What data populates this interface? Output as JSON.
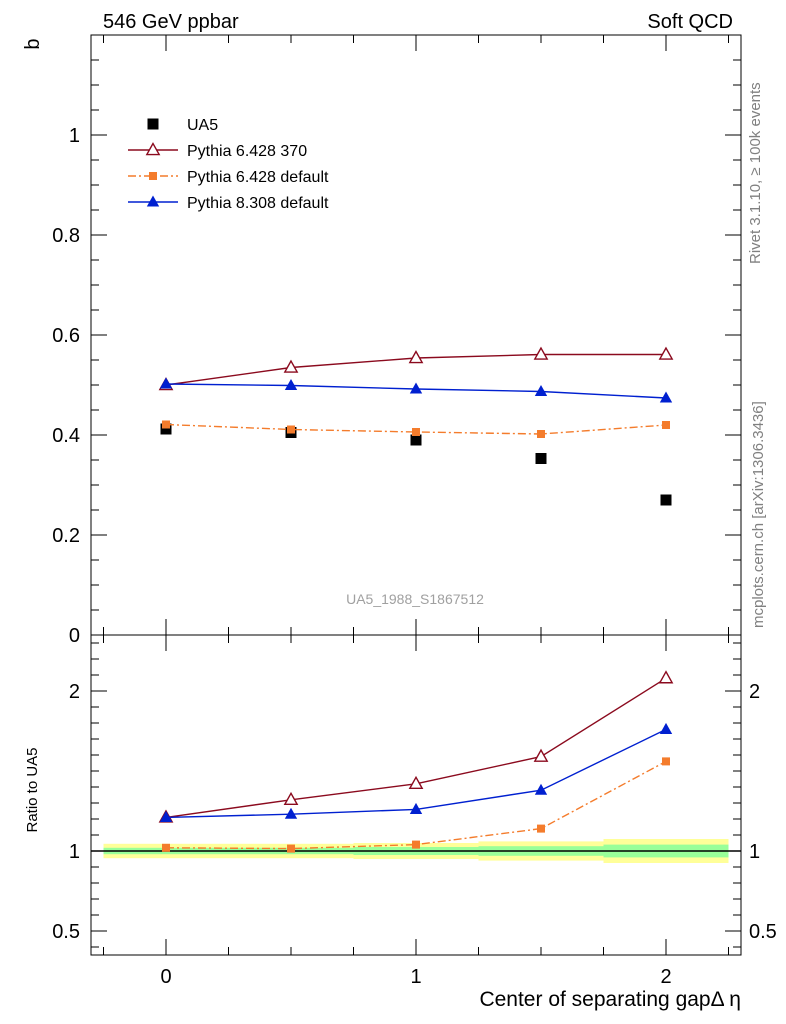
{
  "header": {
    "left": "546 GeV ppbar",
    "right": "Soft QCD"
  },
  "side_texts": {
    "rivet": "Rivet 3.1.10, ≥ 100k events",
    "mcplots": "mcplots.cern.ch [arXiv:1306.3436]"
  },
  "colors": {
    "UA5": "#000000",
    "py6_370": "#8b0a1e",
    "py6_default": "#f47c2c",
    "py8_default": "#0020d0",
    "band_outer": "#ffff99",
    "band_inner": "#99ff99"
  },
  "chart_data": [
    {
      "type": "scatter",
      "panel": "main",
      "ylabel": "b",
      "ylim": [
        0,
        1.2
      ],
      "xlim": [
        -0.3,
        2.3
      ],
      "yticks": [
        0,
        0.2,
        0.4,
        0.6,
        0.8,
        1
      ],
      "ytick_labels": [
        "0",
        "0.2",
        "0.4",
        "0.6",
        "0.8",
        "1"
      ],
      "watermark": "UA5_1988_S1867512",
      "legend_position": "top-left",
      "x": [
        0,
        0.5,
        1,
        1.5,
        2
      ],
      "series": [
        {
          "name": "UA5",
          "key": "UA5",
          "marker": "square",
          "line": "none",
          "values": [
            0.412,
            0.405,
            0.39,
            0.353,
            0.27
          ]
        },
        {
          "name": "Pythia 6.428 370",
          "key": "py6_370",
          "marker": "triangle-open",
          "line": "solid",
          "values": [
            0.5,
            0.535,
            0.554,
            0.561,
            0.561
          ]
        },
        {
          "name": "Pythia 6.428 default",
          "key": "py6_default",
          "marker": "square-small",
          "line": "dashdot",
          "values": [
            0.421,
            0.411,
            0.406,
            0.402,
            0.42
          ]
        },
        {
          "name": "Pythia 8.308 default",
          "key": "py8_default",
          "marker": "triangle",
          "line": "solid",
          "values": [
            0.502,
            0.499,
            0.492,
            0.487,
            0.474
          ]
        }
      ]
    },
    {
      "type": "line",
      "panel": "ratio",
      "ylabel": "Ratio to UA5",
      "xlabel": "Center of separating gapΔ η",
      "ylim": [
        0.35,
        2.35
      ],
      "xlim": [
        -0.3,
        2.3
      ],
      "yticks": [
        0.5,
        1,
        2
      ],
      "ytick_labels": [
        "0.5",
        "1",
        "2"
      ],
      "xticks": [
        0,
        1,
        2
      ],
      "xtick_labels": [
        "0",
        "1",
        "2"
      ],
      "x": [
        0,
        0.5,
        1,
        1.5,
        2
      ],
      "reference": 1,
      "band": {
        "x_edges": [
          -0.25,
          0.25,
          0.75,
          1.25,
          1.75,
          2.25
        ],
        "inner": [
          [
            0.98,
            1.02
          ],
          [
            0.98,
            1.02
          ],
          [
            0.975,
            1.025
          ],
          [
            0.97,
            1.03
          ],
          [
            0.96,
            1.04
          ]
        ],
        "outer": [
          [
            0.955,
            1.045
          ],
          [
            0.955,
            1.045
          ],
          [
            0.95,
            1.05
          ],
          [
            0.94,
            1.06
          ],
          [
            0.925,
            1.075
          ]
        ]
      },
      "series": [
        {
          "name": "Pythia 6.428 370",
          "key": "py6_370",
          "marker": "triangle-open",
          "line": "solid",
          "values": [
            1.21,
            1.32,
            1.42,
            1.59,
            2.08
          ]
        },
        {
          "name": "Pythia 6.428 default",
          "key": "py6_default",
          "marker": "square-small",
          "line": "dashdot",
          "values": [
            1.02,
            1.015,
            1.04,
            1.14,
            1.56
          ]
        },
        {
          "name": "Pythia 8.308 default",
          "key": "py8_default",
          "marker": "triangle",
          "line": "solid",
          "values": [
            1.21,
            1.23,
            1.26,
            1.38,
            1.76
          ]
        }
      ]
    }
  ]
}
